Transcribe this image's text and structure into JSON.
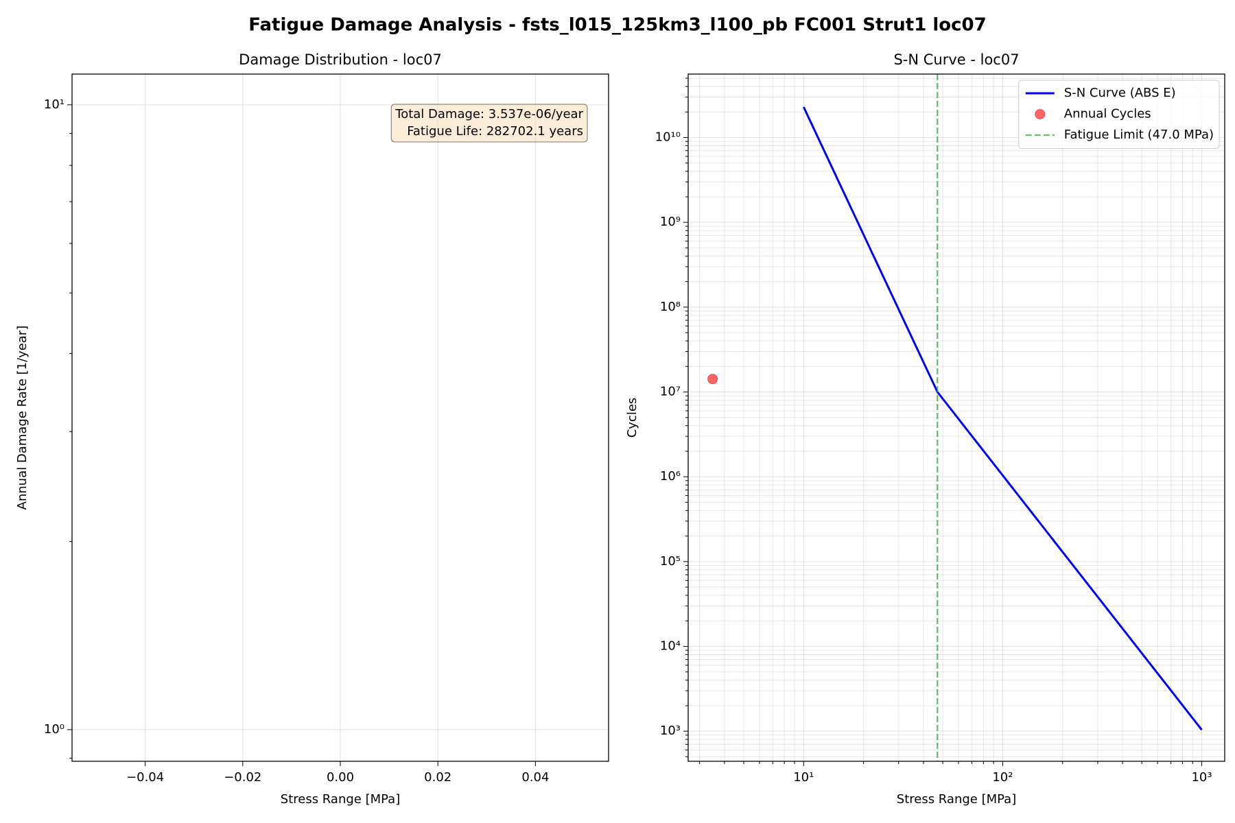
{
  "title": "Fatigue Damage Analysis - fsts_l015_125km3_l100_pb FC001 Strut1 loc07",
  "chart_data": [
    {
      "type": "bar",
      "title": "Damage Distribution - loc07",
      "x_label": "Stress Range [MPa]",
      "y_label": "Annual Damage Rate [1/year]",
      "annotation": [
        "Total Damage: 3.537e-06/year",
        "Fatigue Life: 282702.1 years"
      ],
      "xlim": [
        -0.055,
        0.055
      ],
      "xticks": [
        {
          "value": -0.04,
          "label": "−0.04"
        },
        {
          "value": -0.02,
          "label": "−0.02"
        },
        {
          "value": 0,
          "label": "0.00"
        },
        {
          "value": 0.02,
          "label": "0.02"
        },
        {
          "value": 0.04,
          "label": "0.04"
        }
      ],
      "ylim": [
        0.89,
        11.2
      ],
      "y_log": true,
      "yticks": [
        {
          "value": 1,
          "label": "10⁰"
        },
        {
          "value": 10,
          "label": "10¹"
        }
      ],
      "grid": true
    },
    {
      "type": "line",
      "title": "S-N Curve - loc07",
      "x_label": "Stress Range [MPa]",
      "y_label": "Cycles",
      "xlim": [
        2.63,
        1304
      ],
      "x_log": true,
      "xticks": [
        {
          "value": 10,
          "label": "10¹"
        },
        {
          "value": 100,
          "label": "10²"
        },
        {
          "value": 1000,
          "label": "10³"
        }
      ],
      "ylim": [
        442,
        56000000000
      ],
      "y_log": true,
      "yticks": [
        {
          "value": 1000,
          "label": "10³"
        },
        {
          "value": 10000,
          "label": "10⁴"
        },
        {
          "value": 100000,
          "label": "10⁵"
        },
        {
          "value": 1000000,
          "label": "10⁶"
        },
        {
          "value": 10000000,
          "label": "10⁷"
        },
        {
          "value": 100000000,
          "label": "10⁸"
        },
        {
          "value": 1000000000,
          "label": "10⁹"
        },
        {
          "value": 10000000000,
          "label": "10¹⁰"
        }
      ],
      "grid": true,
      "minor_grid": true,
      "legend": "upper right",
      "series": [
        {
          "name": "S-N Curve (ABS E)",
          "type": "line",
          "color": "#0000ff",
          "x": [
            10,
            47,
            1000
          ],
          "values": [
            22900000000,
            10000000,
            1038
          ]
        },
        {
          "name": "Annual Cycles",
          "type": "scatter",
          "color": "#ff0000",
          "x": [
            3.49
          ],
          "values": [
            14200000
          ]
        },
        {
          "name": "Fatigue Limit (47.0 MPa)",
          "type": "vline",
          "color": "#2ca02c",
          "x": [
            47
          ]
        }
      ]
    }
  ]
}
